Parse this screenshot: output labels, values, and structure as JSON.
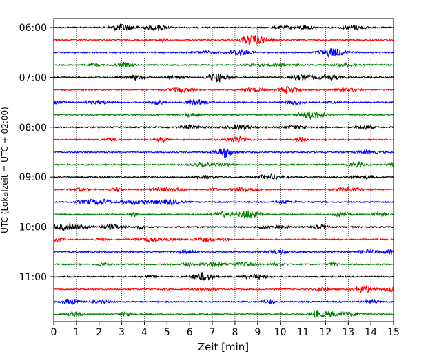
{
  "chart_data": {
    "type": "line",
    "title": "",
    "xlabel": "Zeit  [min]",
    "ylabel": "UTC (Lokalzeit = UTC + 02:00)",
    "xlim": [
      0,
      15
    ],
    "x_ticks": [
      "0",
      "1",
      "2",
      "3",
      "4",
      "5",
      "6",
      "7",
      "8",
      "9",
      "10",
      "11",
      "12",
      "13",
      "14",
      "15"
    ],
    "y_tick_labels": [
      "06:00",
      "07:00",
      "08:00",
      "09:00",
      "10:00",
      "11:00"
    ],
    "trace_start_times": [
      "06:00",
      "06:15",
      "06:30",
      "06:45",
      "07:00",
      "07:15",
      "07:30",
      "07:45",
      "08:00",
      "08:15",
      "08:30",
      "08:45",
      "09:00",
      "09:15",
      "09:30",
      "09:45",
      "10:00",
      "10:15",
      "10:30",
      "10:45",
      "11:00",
      "11:15",
      "11:30",
      "11:45"
    ],
    "trace_color_cycle": [
      "#000000",
      "#ff0000",
      "#0000ff",
      "#008000"
    ],
    "grid": "vertical dotted at each minute",
    "legend": "none"
  }
}
